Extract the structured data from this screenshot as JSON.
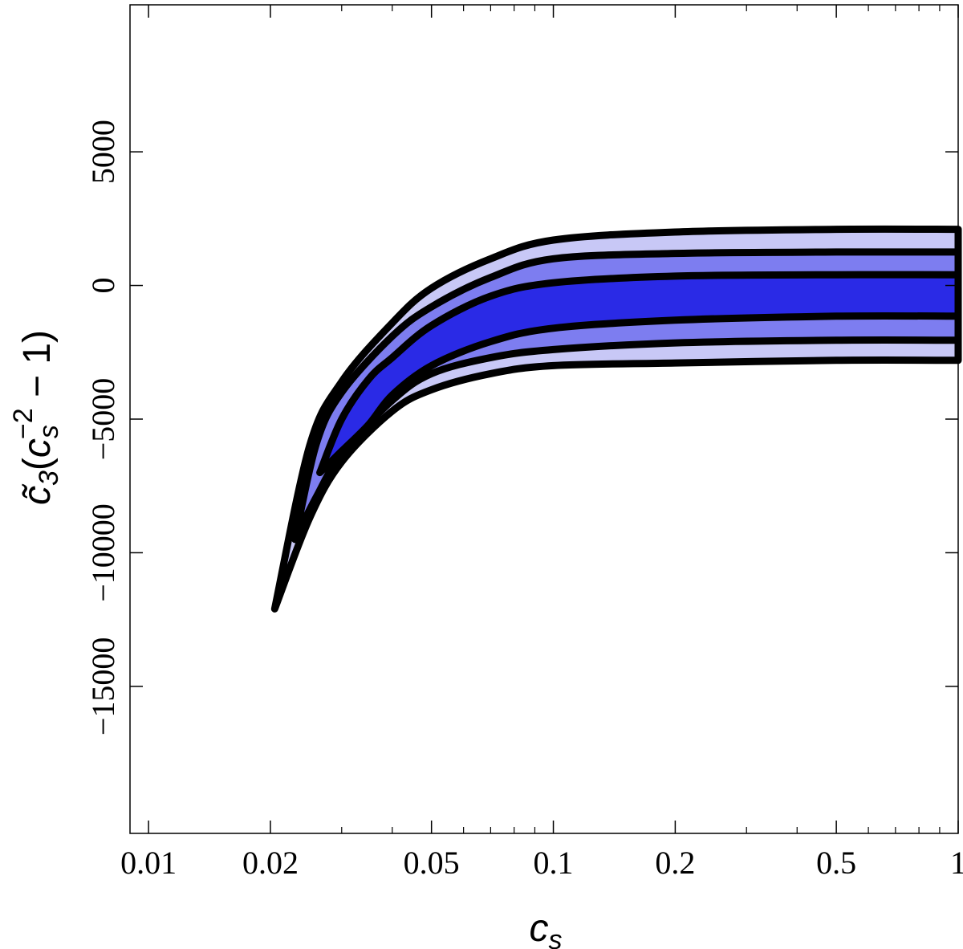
{
  "chart_data": {
    "type": "area",
    "title": "",
    "xlabel": {
      "base": "c",
      "sub": "s"
    },
    "ylabel": {
      "prefix": "c̃",
      "sub": "3",
      "open": "(",
      "base": "c",
      "sub2": "s",
      "sup": "−2",
      "rest": " − 1)"
    },
    "x_scale": "log",
    "xlim": [
      0.009,
      1
    ],
    "ylim": [
      -20500,
      10500
    ],
    "x_ticks": [
      {
        "value": 0.01,
        "label": "0.01"
      },
      {
        "value": 0.02,
        "label": "0.02"
      },
      {
        "value": 0.05,
        "label": "0.05"
      },
      {
        "value": 0.1,
        "label": "0.1"
      },
      {
        "value": 0.2,
        "label": "0.2"
      },
      {
        "value": 0.5,
        "label": "0.5"
      },
      {
        "value": 1,
        "label": "1"
      }
    ],
    "y_ticks": [
      {
        "value": 5000,
        "label": "5000"
      },
      {
        "value": 0,
        "label": "0"
      },
      {
        "value": -5000,
        "label": "−5000"
      },
      {
        "value": -10000,
        "label": "−10000"
      },
      {
        "value": -15000,
        "label": "−15000"
      }
    ],
    "grid": false,
    "colors": {
      "outer": "#c8c8f6",
      "middle": "#7d7df0",
      "inner": "#2a2ae6",
      "outline": "#000000"
    },
    "regions": [
      {
        "level": "outer",
        "tip": {
          "x": 0.0205,
          "y": -12100
        },
        "upper": [
          [
            0.0205,
            -12100
          ],
          [
            0.025,
            -6000
          ],
          [
            0.03,
            -3600
          ],
          [
            0.04,
            -1400
          ],
          [
            0.05,
            -100
          ],
          [
            0.07,
            1000
          ],
          [
            0.1,
            1700
          ],
          [
            0.2,
            2000
          ],
          [
            0.5,
            2100
          ],
          [
            1,
            2100
          ]
        ],
        "lower": [
          [
            0.0205,
            -12100
          ],
          [
            0.025,
            -8700
          ],
          [
            0.03,
            -6600
          ],
          [
            0.04,
            -4700
          ],
          [
            0.05,
            -3900
          ],
          [
            0.07,
            -3300
          ],
          [
            0.1,
            -3000
          ],
          [
            0.2,
            -2900
          ],
          [
            0.5,
            -2800
          ],
          [
            1,
            -2800
          ]
        ]
      },
      {
        "level": "middle",
        "tip": {
          "x": 0.023,
          "y": -9500
        },
        "upper": [
          [
            0.023,
            -9500
          ],
          [
            0.026,
            -5900
          ],
          [
            0.03,
            -4000
          ],
          [
            0.04,
            -1900
          ],
          [
            0.05,
            -800
          ],
          [
            0.07,
            300
          ],
          [
            0.1,
            1000
          ],
          [
            0.2,
            1200
          ],
          [
            0.5,
            1250
          ],
          [
            1,
            1250
          ]
        ],
        "lower": [
          [
            0.023,
            -9500
          ],
          [
            0.026,
            -7900
          ],
          [
            0.03,
            -6300
          ],
          [
            0.04,
            -4300
          ],
          [
            0.05,
            -3300
          ],
          [
            0.07,
            -2700
          ],
          [
            0.1,
            -2400
          ],
          [
            0.2,
            -2150
          ],
          [
            0.5,
            -2050
          ],
          [
            1,
            -2050
          ]
        ]
      },
      {
        "level": "inner",
        "tip": {
          "x": 0.0265,
          "y": -7000
        },
        "upper": [
          [
            0.0265,
            -7000
          ],
          [
            0.03,
            -5000
          ],
          [
            0.035,
            -3500
          ],
          [
            0.04,
            -2700
          ],
          [
            0.05,
            -1500
          ],
          [
            0.07,
            -400
          ],
          [
            0.1,
            100
          ],
          [
            0.2,
            350
          ],
          [
            0.5,
            400
          ],
          [
            1,
            400
          ]
        ],
        "lower": [
          [
            0.0265,
            -7000
          ],
          [
            0.03,
            -6200
          ],
          [
            0.035,
            -5200
          ],
          [
            0.04,
            -4100
          ],
          [
            0.05,
            -3000
          ],
          [
            0.07,
            -2100
          ],
          [
            0.1,
            -1600
          ],
          [
            0.2,
            -1300
          ],
          [
            0.5,
            -1150
          ],
          [
            1,
            -1150
          ]
        ]
      }
    ]
  }
}
